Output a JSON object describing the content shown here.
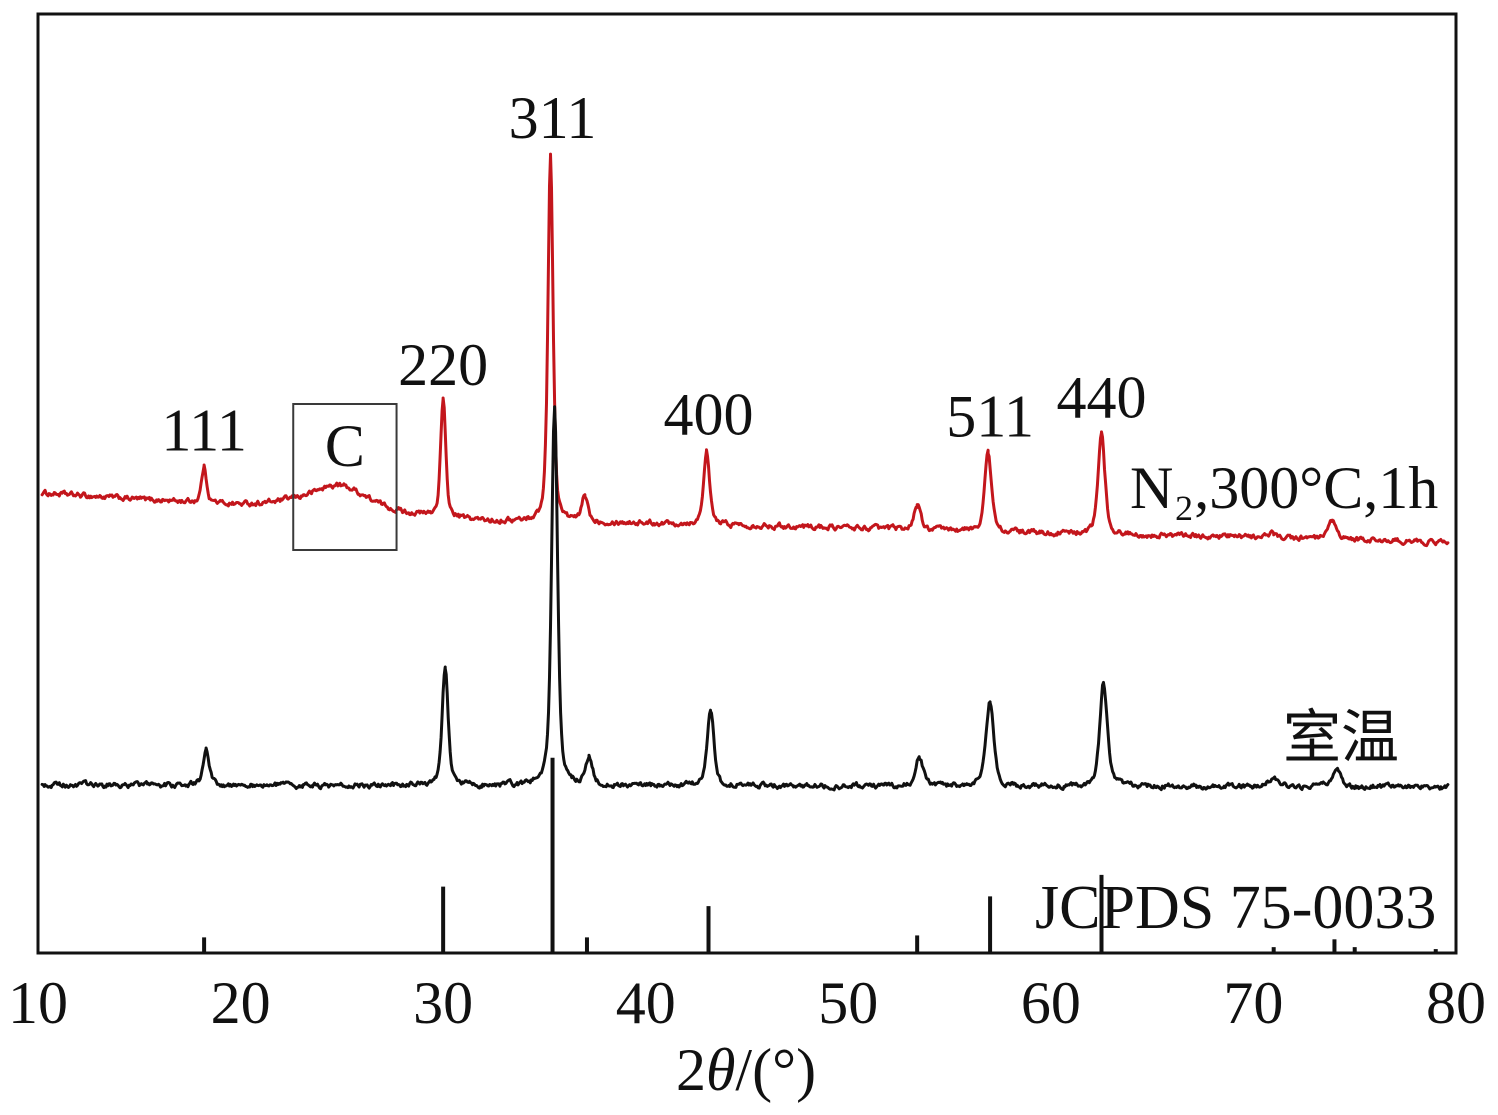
{
  "chart_data": {
    "type": "line",
    "xlabel": "2θ/(°)",
    "xlim": [
      10,
      80
    ],
    "ylim": [
      0,
      100
    ],
    "x_ticks": [
      10,
      20,
      30,
      40,
      50,
      60,
      70,
      80
    ],
    "grid": false,
    "series": [
      {
        "name": "N₂,300°C,1h",
        "color": "#c3161c",
        "baseline": [
          [
            10,
            49.0
          ],
          [
            15,
            48.3
          ],
          [
            20,
            47.7
          ],
          [
            22.5,
            47.8
          ],
          [
            28.5,
            46.6
          ],
          [
            32,
            46.0
          ],
          [
            40,
            45.8
          ],
          [
            50,
            45.3
          ],
          [
            60,
            44.7
          ],
          [
            70,
            44.3
          ],
          [
            80,
            43.7
          ]
        ],
        "peaks": [
          {
            "x": 18.2,
            "y": 51.7,
            "fwhm": 0.3
          },
          {
            "x": 24.9,
            "y": 49.8,
            "fwhm": 3.2
          },
          {
            "x": 30.0,
            "y": 58.7,
            "fwhm": 0.3
          },
          {
            "x": 35.3,
            "y": 85.0,
            "fwhm": 0.3
          },
          {
            "x": 37.0,
            "y": 48.6,
            "fwhm": 0.35
          },
          {
            "x": 43.0,
            "y": 53.4,
            "fwhm": 0.35
          },
          {
            "x": 53.4,
            "y": 47.7,
            "fwhm": 0.4
          },
          {
            "x": 56.9,
            "y": 53.2,
            "fwhm": 0.4
          },
          {
            "x": 62.5,
            "y": 55.2,
            "fwhm": 0.4
          },
          {
            "x": 71.0,
            "y": 44.7,
            "fwhm": 0.5
          },
          {
            "x": 73.9,
            "y": 45.9,
            "fwhm": 0.45
          }
        ]
      },
      {
        "name": "室温",
        "color": "#111111",
        "baseline": [
          [
            10,
            17.9
          ],
          [
            80,
            17.7
          ]
        ],
        "peaks": [
          {
            "x": 18.3,
            "y": 21.9,
            "fwhm": 0.35
          },
          {
            "x": 30.1,
            "y": 30.4,
            "fwhm": 0.35
          },
          {
            "x": 35.5,
            "y": 58.4,
            "fwhm": 0.35
          },
          {
            "x": 37.2,
            "y": 20.8,
            "fwhm": 0.4
          },
          {
            "x": 43.2,
            "y": 25.7,
            "fwhm": 0.4
          },
          {
            "x": 53.5,
            "y": 20.9,
            "fwhm": 0.45
          },
          {
            "x": 57.0,
            "y": 26.7,
            "fwhm": 0.45
          },
          {
            "x": 62.6,
            "y": 28.8,
            "fwhm": 0.45
          },
          {
            "x": 71.0,
            "y": 18.6,
            "fwhm": 0.6
          },
          {
            "x": 74.1,
            "y": 19.5,
            "fwhm": 0.5
          }
        ]
      }
    ],
    "reference": {
      "name": "JCPDS 75-0033",
      "color": "#111111",
      "sticks": [
        {
          "x": 18.2,
          "relative_intensity": 8
        },
        {
          "x": 30.0,
          "relative_intensity": 34
        },
        {
          "x": 35.4,
          "relative_intensity": 100
        },
        {
          "x": 37.1,
          "relative_intensity": 8
        },
        {
          "x": 43.1,
          "relative_intensity": 24
        },
        {
          "x": 53.4,
          "relative_intensity": 9
        },
        {
          "x": 57.0,
          "relative_intensity": 29
        },
        {
          "x": 62.5,
          "relative_intensity": 40
        },
        {
          "x": 71.0,
          "relative_intensity": 3
        },
        {
          "x": 74.0,
          "relative_intensity": 7
        },
        {
          "x": 75.0,
          "relative_intensity": 3
        },
        {
          "x": 79.0,
          "relative_intensity": 2
        }
      ]
    },
    "peak_labels": [
      {
        "text": "111",
        "x": 18.2
      },
      {
        "text": "220",
        "x": 30.0
      },
      {
        "text": "311",
        "x": 35.4
      },
      {
        "text": "400",
        "x": 43.1
      },
      {
        "text": "511",
        "x": 57.0
      },
      {
        "text": "440",
        "x": 62.5
      }
    ],
    "annotations": [
      {
        "text": "C",
        "x_range": [
          22.6,
          27.7
        ]
      }
    ]
  }
}
